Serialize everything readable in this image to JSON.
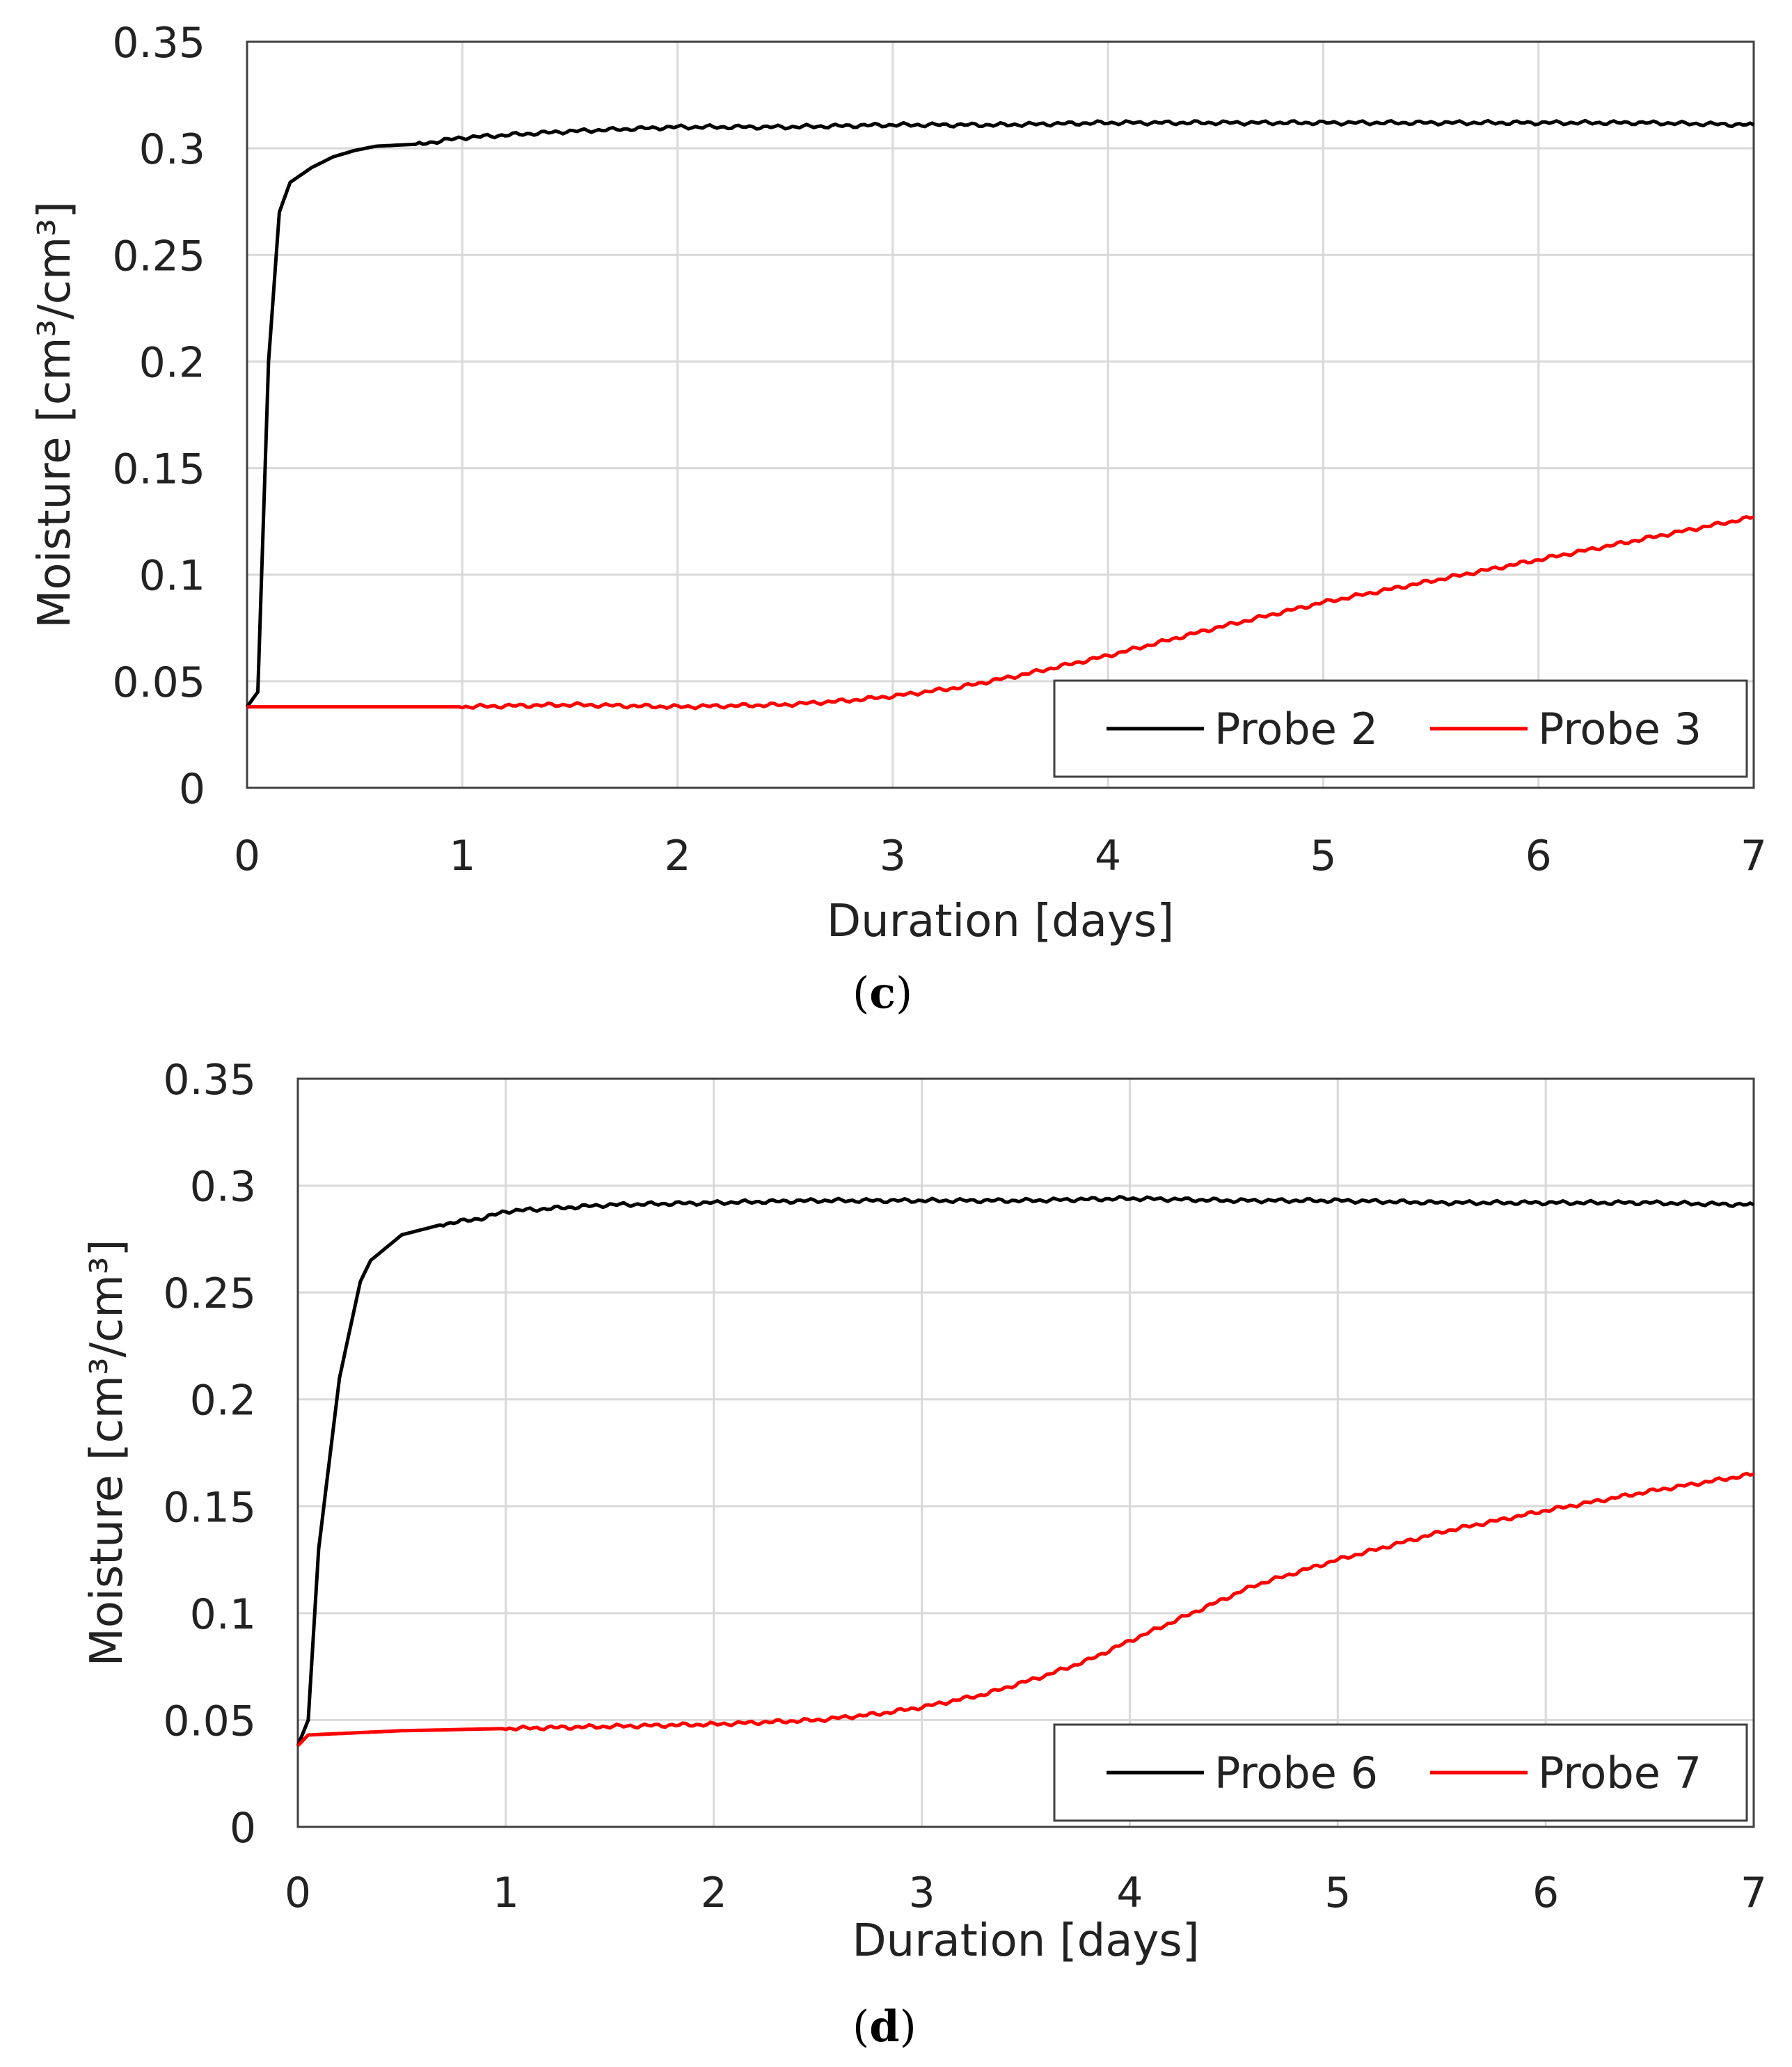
{
  "chart_data": [
    {
      "panel": "c",
      "type": "line",
      "xlabel": "Duration [days]",
      "ylabel": "Moisture [cm³/cm³]",
      "xlim": [
        0,
        7
      ],
      "ylim": [
        0,
        0.35
      ],
      "xticks": [
        "0",
        "1",
        "2",
        "3",
        "4",
        "5",
        "6",
        "7"
      ],
      "yticks": [
        "0",
        "0.05",
        "0.1",
        "0.15",
        "0.2",
        "0.25",
        "0.3",
        "0.35"
      ],
      "grid": true,
      "legend_position": "bottom-right",
      "series": [
        {
          "name": "Probe 2",
          "color": "#000000",
          "x": [
            0,
            0.05,
            0.1,
            0.15,
            0.2,
            0.3,
            0.4,
            0.5,
            0.6,
            0.8,
            1.0,
            1.5,
            2.0,
            2.5,
            3.0,
            3.5,
            4.0,
            4.5,
            5.0,
            5.5,
            6.0,
            6.5,
            7.0
          ],
          "y": [
            0.038,
            0.045,
            0.2,
            0.27,
            0.284,
            0.291,
            0.296,
            0.299,
            0.301,
            0.302,
            0.305,
            0.308,
            0.31,
            0.31,
            0.311,
            0.311,
            0.312,
            0.312,
            0.312,
            0.312,
            0.312,
            0.312,
            0.311
          ]
        },
        {
          "name": "Probe 3",
          "color": "#ff0000",
          "x": [
            0,
            0.5,
            1.0,
            1.5,
            2.0,
            2.5,
            2.8,
            3.0,
            3.3,
            3.6,
            4.0,
            4.5,
            5.0,
            5.5,
            6.0,
            6.5,
            7.0
          ],
          "y": [
            0.038,
            0.038,
            0.038,
            0.039,
            0.038,
            0.039,
            0.041,
            0.043,
            0.047,
            0.053,
            0.062,
            0.075,
            0.087,
            0.097,
            0.107,
            0.117,
            0.127
          ]
        }
      ]
    },
    {
      "panel": "d",
      "type": "line",
      "xlabel": "Duration [days]",
      "ylabel": "Moisture [cm³/cm³]",
      "xlim": [
        0,
        7
      ],
      "ylim": [
        0,
        0.35
      ],
      "xticks": [
        "0",
        "1",
        "2",
        "3",
        "4",
        "5",
        "6",
        "7"
      ],
      "yticks": [
        "0",
        "0.05",
        "0.1",
        "0.15",
        "0.2",
        "0.25",
        "0.3",
        "0.35"
      ],
      "grid": true,
      "legend_position": "bottom-right",
      "series": [
        {
          "name": "Probe 6",
          "color": "#000000",
          "x": [
            0,
            0.05,
            0.1,
            0.2,
            0.3,
            0.35,
            0.5,
            0.7,
            0.9,
            1.0,
            1.5,
            2.0,
            2.5,
            3.0,
            3.5,
            4.0,
            4.5,
            5.0,
            5.5,
            6.0,
            6.5,
            7.0
          ],
          "y": [
            0.038,
            0.05,
            0.13,
            0.21,
            0.255,
            0.265,
            0.277,
            0.282,
            0.285,
            0.288,
            0.291,
            0.292,
            0.293,
            0.293,
            0.293,
            0.294,
            0.293,
            0.293,
            0.292,
            0.292,
            0.292,
            0.291
          ]
        },
        {
          "name": "Probe 7",
          "color": "#ff0000",
          "x": [
            0,
            0.05,
            0.5,
            1.0,
            1.5,
            2.0,
            2.5,
            2.8,
            3.0,
            3.3,
            3.6,
            3.8,
            4.0,
            4.3,
            4.6,
            5.0,
            5.5,
            6.0,
            6.5,
            7.0
          ],
          "y": [
            0.038,
            0.043,
            0.045,
            0.046,
            0.047,
            0.048,
            0.05,
            0.053,
            0.056,
            0.062,
            0.071,
            0.078,
            0.087,
            0.1,
            0.113,
            0.125,
            0.138,
            0.148,
            0.157,
            0.165
          ]
        }
      ]
    }
  ],
  "panel_labels": {
    "c": {
      "open": "(",
      "letter": "c",
      "close": ")"
    },
    "d": {
      "open": "(",
      "letter": "d",
      "close": ")"
    }
  }
}
